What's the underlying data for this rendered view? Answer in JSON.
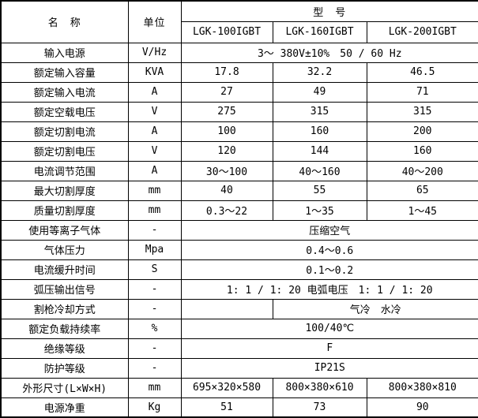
{
  "table": {
    "header": {
      "name_label": "名　称",
      "unit_label": "单位",
      "model_group_label": "型　号",
      "models": [
        "LGK-100IGBT",
        "LGK-160IGBT",
        "LGK-200IGBT"
      ]
    },
    "rows": [
      {
        "name": "输入电源",
        "unit": "V/Hz",
        "cells": [
          {
            "text": "3～ 380V±10%　50 / 60 Hz",
            "colspan": 3
          }
        ]
      },
      {
        "name": "额定输入容量",
        "unit": "KVA",
        "cells": [
          {
            "text": "17.8"
          },
          {
            "text": "32.2"
          },
          {
            "text": "46.5"
          }
        ]
      },
      {
        "name": "额定输入电流",
        "unit": "A",
        "cells": [
          {
            "text": "27"
          },
          {
            "text": "49"
          },
          {
            "text": "71"
          }
        ]
      },
      {
        "name": "额定空载电压",
        "unit": "V",
        "cells": [
          {
            "text": "275"
          },
          {
            "text": "315"
          },
          {
            "text": "315"
          }
        ]
      },
      {
        "name": "额定切割电流",
        "unit": "A",
        "cells": [
          {
            "text": "100"
          },
          {
            "text": "160"
          },
          {
            "text": "200"
          }
        ]
      },
      {
        "name": "额定切割电压",
        "unit": "V",
        "cells": [
          {
            "text": "120"
          },
          {
            "text": "144"
          },
          {
            "text": "160"
          }
        ]
      },
      {
        "name": "电流调节范围",
        "unit": "A",
        "cells": [
          {
            "text": "30～100"
          },
          {
            "text": "40～160"
          },
          {
            "text": "40～200"
          }
        ]
      },
      {
        "name": "最大切割厚度",
        "unit": "mm",
        "cells": [
          {
            "text": "40"
          },
          {
            "text": "55"
          },
          {
            "text": "65"
          }
        ]
      },
      {
        "name": "质量切割厚度",
        "unit": "mm",
        "cells": [
          {
            "text": "0.3～22"
          },
          {
            "text": "1～35"
          },
          {
            "text": "1～45"
          }
        ]
      },
      {
        "name": "使用等离子气体",
        "unit": "-",
        "cells": [
          {
            "text": "压缩空气",
            "colspan": 3
          }
        ]
      },
      {
        "name": "气体压力",
        "unit": "Mpa",
        "cells": [
          {
            "text": "0.4～0.6",
            "colspan": 3
          }
        ]
      },
      {
        "name": "电流缓升时间",
        "unit": "S",
        "cells": [
          {
            "text": "0.1～0.2",
            "colspan": 3
          }
        ]
      },
      {
        "name": "弧压输出信号",
        "unit": "-",
        "cells": [
          {
            "text": "1: 1 / 1: 20 电弧电压　1: 1 / 1: 20",
            "colspan": 3
          }
        ]
      },
      {
        "name": "割枪冷却方式",
        "unit": "-",
        "cells": [
          {
            "text": ""
          },
          {
            "text": "气冷　水冷",
            "colspan": 2
          }
        ]
      },
      {
        "name": "额定负载持续率",
        "unit": "%",
        "cells": [
          {
            "text": "100/40℃",
            "colspan": 3
          }
        ]
      },
      {
        "name": "绝缘等级",
        "unit": "-",
        "cells": [
          {
            "text": "F",
            "colspan": 3
          }
        ]
      },
      {
        "name": "防护等级",
        "unit": "-",
        "cells": [
          {
            "text": "IP21S",
            "colspan": 3
          }
        ]
      },
      {
        "name": "外形尺寸(L×W×H)",
        "unit": "mm",
        "cells": [
          {
            "text": "695×320×580"
          },
          {
            "text": "800×380×610"
          },
          {
            "text": "800×380×810"
          }
        ]
      },
      {
        "name": "电源净重",
        "unit": "Kg",
        "cells": [
          {
            "text": "51"
          },
          {
            "text": "73"
          },
          {
            "text": "90"
          }
        ]
      }
    ],
    "colors": {
      "border": "#000000",
      "background": "#ffffff",
      "text": "#000000"
    }
  }
}
